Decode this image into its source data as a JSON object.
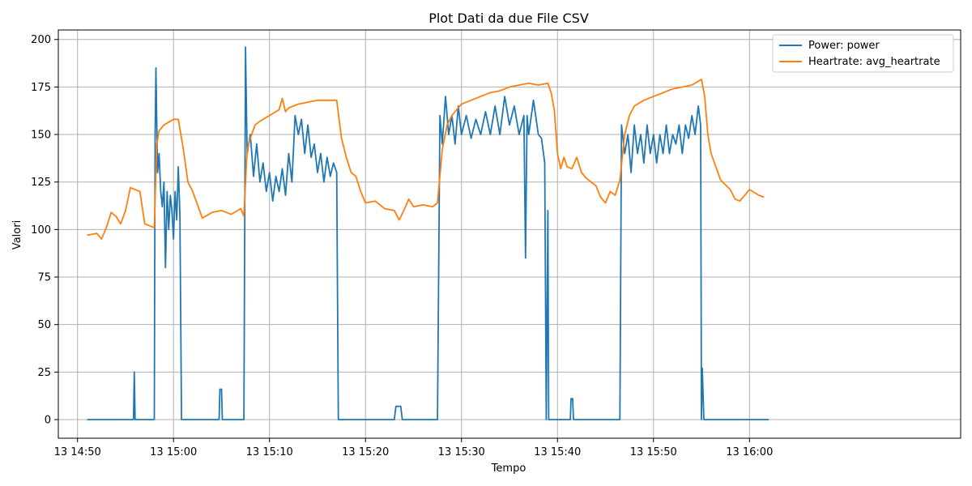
{
  "chart_data": {
    "type": "line",
    "title": "Plot Dati da due File CSV",
    "xlabel": "Tempo",
    "ylabel": "Valori",
    "xlim": [
      "13 14:48",
      "13 16:22"
    ],
    "ylim": [
      -9.8,
      205
    ],
    "x_ticks": [
      "13 14:50",
      "13 15:00",
      "13 15:10",
      "13 15:20",
      "13 15:30",
      "13 15:40",
      "13 15:50",
      "13 16:00"
    ],
    "y_ticks": [
      0,
      25,
      50,
      75,
      100,
      125,
      150,
      175,
      200
    ],
    "grid": true,
    "legend_position": "top-right",
    "series": [
      {
        "name": "Power: power",
        "color": "#1f77b4",
        "points": [
          [
            "13 14:51",
            0
          ],
          [
            "13 14:55",
            0
          ],
          [
            "13 14:55:50",
            0
          ],
          [
            "13 14:55:55",
            25
          ],
          [
            "13 14:56:00",
            0
          ],
          [
            "13 14:58",
            0
          ],
          [
            "13 14:58:05",
            150
          ],
          [
            "13 14:58:10",
            185
          ],
          [
            "13 14:58:20",
            130
          ],
          [
            "13 14:58:30",
            140
          ],
          [
            "13 14:58:40",
            120
          ],
          [
            "13 14:58:50",
            112
          ],
          [
            "13 14:59:00",
            125
          ],
          [
            "13 14:59:10",
            80
          ],
          [
            "13 14:59:20",
            120
          ],
          [
            "13 14:59:30",
            100
          ],
          [
            "13 14:59:40",
            118
          ],
          [
            "13 14:59:50",
            110
          ],
          [
            "13 15:00:00",
            95
          ],
          [
            "13 15:00:10",
            120
          ],
          [
            "13 15:00:20",
            105
          ],
          [
            "13 15:00:30",
            133
          ],
          [
            "13 15:00:40",
            108
          ],
          [
            "13 15:00:50",
            0
          ],
          [
            "13 15:04:45",
            0
          ],
          [
            "13 15:04:50",
            16
          ],
          [
            "13 15:05:00",
            16
          ],
          [
            "13 15:05:05",
            0
          ],
          [
            "13 15:07:20",
            0
          ],
          [
            "13 15:07:30",
            196
          ],
          [
            "13 15:07:40",
            140
          ],
          [
            "13 15:08:00",
            150
          ],
          [
            "13 15:08:20",
            128
          ],
          [
            "13 15:08:40",
            145
          ],
          [
            "13 15:09:00",
            125
          ],
          [
            "13 15:09:20",
            135
          ],
          [
            "13 15:09:40",
            120
          ],
          [
            "13 15:10:00",
            130
          ],
          [
            "13 15:10:20",
            115
          ],
          [
            "13 15:10:40",
            128
          ],
          [
            "13 15:11:00",
            120
          ],
          [
            "13 15:11:20",
            132
          ],
          [
            "13 15:11:40",
            118
          ],
          [
            "13 15:12:00",
            140
          ],
          [
            "13 15:12:20",
            125
          ],
          [
            "13 15:12:40",
            160
          ],
          [
            "13 15:13:00",
            150
          ],
          [
            "13 15:13:20",
            158
          ],
          [
            "13 15:13:40",
            140
          ],
          [
            "13 15:14:00",
            155
          ],
          [
            "13 15:14:20",
            138
          ],
          [
            "13 15:14:40",
            145
          ],
          [
            "13 15:15:00",
            130
          ],
          [
            "13 15:15:20",
            140
          ],
          [
            "13 15:15:40",
            125
          ],
          [
            "13 15:16:00",
            138
          ],
          [
            "13 15:16:20",
            128
          ],
          [
            "13 15:16:40",
            135
          ],
          [
            "13 15:17:00",
            130
          ],
          [
            "13 15:17:10",
            0
          ],
          [
            "13 15:23:00",
            0
          ],
          [
            "13 15:23:10",
            7
          ],
          [
            "13 15:23:40",
            7
          ],
          [
            "13 15:23:50",
            0
          ],
          [
            "13 15:27:30",
            0
          ],
          [
            "13 15:27:45",
            160
          ],
          [
            "13 15:28:00",
            145
          ],
          [
            "13 15:28:20",
            170
          ],
          [
            "13 15:28:40",
            150
          ],
          [
            "13 15:29:00",
            160
          ],
          [
            "13 15:29:20",
            145
          ],
          [
            "13 15:29:40",
            165
          ],
          [
            "13 15:30:00",
            150
          ],
          [
            "13 15:30:30",
            160
          ],
          [
            "13 15:31:00",
            148
          ],
          [
            "13 15:31:30",
            158
          ],
          [
            "13 15:32:00",
            150
          ],
          [
            "13 15:32:30",
            162
          ],
          [
            "13 15:33:00",
            150
          ],
          [
            "13 15:33:30",
            165
          ],
          [
            "13 15:34:00",
            150
          ],
          [
            "13 15:34:30",
            170
          ],
          [
            "13 15:35:00",
            155
          ],
          [
            "13 15:35:30",
            165
          ],
          [
            "13 15:36:00",
            150
          ],
          [
            "13 15:36:30",
            160
          ],
          [
            "13 15:36:40",
            85
          ],
          [
            "13 15:36:50",
            160
          ],
          [
            "13 15:37:00",
            150
          ],
          [
            "13 15:37:30",
            168
          ],
          [
            "13 15:38:00",
            150
          ],
          [
            "13 15:38:20",
            148
          ],
          [
            "13 15:38:40",
            135
          ],
          [
            "13 15:38:50",
            0
          ],
          [
            "13 15:39:00",
            110
          ],
          [
            "13 15:39:05",
            0
          ],
          [
            "13 15:41:20",
            0
          ],
          [
            "13 15:41:25",
            11
          ],
          [
            "13 15:41:35",
            11
          ],
          [
            "13 15:41:40",
            0
          ],
          [
            "13 15:46:30",
            0
          ],
          [
            "13 15:46:40",
            155
          ],
          [
            "13 15:47:00",
            140
          ],
          [
            "13 15:47:20",
            150
          ],
          [
            "13 15:47:40",
            130
          ],
          [
            "13 15:48:00",
            155
          ],
          [
            "13 15:48:20",
            140
          ],
          [
            "13 15:48:40",
            150
          ],
          [
            "13 15:49:00",
            135
          ],
          [
            "13 15:49:20",
            155
          ],
          [
            "13 15:49:40",
            140
          ],
          [
            "13 15:50:00",
            150
          ],
          [
            "13 15:50:20",
            135
          ],
          [
            "13 15:50:40",
            150
          ],
          [
            "13 15:51:00",
            140
          ],
          [
            "13 15:51:20",
            155
          ],
          [
            "13 15:51:40",
            140
          ],
          [
            "13 15:52:00",
            150
          ],
          [
            "13 15:52:20",
            145
          ],
          [
            "13 15:52:40",
            155
          ],
          [
            "13 15:53:00",
            140
          ],
          [
            "13 15:53:20",
            155
          ],
          [
            "13 15:53:40",
            148
          ],
          [
            "13 15:54:00",
            160
          ],
          [
            "13 15:54:20",
            150
          ],
          [
            "13 15:54:40",
            165
          ],
          [
            "13 15:54:55",
            155
          ],
          [
            "13 15:55:00",
            0
          ],
          [
            "13 15:55:05",
            27
          ],
          [
            "13 15:55:15",
            0
          ],
          [
            "13 16:02",
            0
          ]
        ]
      },
      {
        "name": "Heartrate: avg_heartrate",
        "color": "#ff7f0e",
        "points": [
          [
            "13 14:51",
            97
          ],
          [
            "13 14:52",
            98
          ],
          [
            "13 14:52:30",
            95
          ],
          [
            "13 14:53",
            101
          ],
          [
            "13 14:53:30",
            109
          ],
          [
            "13 14:54",
            107
          ],
          [
            "13 14:54:30",
            103
          ],
          [
            "13 14:55",
            110
          ],
          [
            "13 14:55:30",
            122
          ],
          [
            "13 14:56",
            121
          ],
          [
            "13 14:56:30",
            120
          ],
          [
            "13 14:57",
            103
          ],
          [
            "13 14:57:30",
            102
          ],
          [
            "13 14:58",
            101
          ],
          [
            "13 14:58:15",
            145
          ],
          [
            "13 14:58:30",
            152
          ],
          [
            "13 14:59",
            155
          ],
          [
            "13 15:00",
            158
          ],
          [
            "13 15:00:30",
            158
          ],
          [
            "13 15:01",
            143
          ],
          [
            "13 15:01:30",
            125
          ],
          [
            "13 15:02",
            120
          ],
          [
            "13 15:03",
            106
          ],
          [
            "13 15:04",
            109
          ],
          [
            "13 15:05",
            110
          ],
          [
            "13 15:06",
            108
          ],
          [
            "13 15:07",
            111
          ],
          [
            "13 15:07:20",
            107
          ],
          [
            "13 15:07:40",
            142
          ],
          [
            "13 15:08",
            148
          ],
          [
            "13 15:08:30",
            155
          ],
          [
            "13 15:09",
            157
          ],
          [
            "13 15:10",
            160
          ],
          [
            "13 15:11",
            163
          ],
          [
            "13 15:11:20",
            169
          ],
          [
            "13 15:11:40",
            162
          ],
          [
            "13 15:12",
            164
          ],
          [
            "13 15:13",
            166
          ],
          [
            "13 15:14",
            167
          ],
          [
            "13 15:15",
            168
          ],
          [
            "13 15:16",
            168
          ],
          [
            "13 15:17",
            168
          ],
          [
            "13 15:17:30",
            148
          ],
          [
            "13 15:18",
            138
          ],
          [
            "13 15:18:30",
            130
          ],
          [
            "13 15:19",
            128
          ],
          [
            "13 15:19:30",
            120
          ],
          [
            "13 15:20",
            114
          ],
          [
            "13 15:21",
            115
          ],
          [
            "13 15:22",
            111
          ],
          [
            "13 15:23",
            110
          ],
          [
            "13 15:23:30",
            105
          ],
          [
            "13 15:24",
            110
          ],
          [
            "13 15:24:30",
            116
          ],
          [
            "13 15:25",
            112
          ],
          [
            "13 15:26",
            113
          ],
          [
            "13 15:27",
            112
          ],
          [
            "13 15:27:30",
            114
          ],
          [
            "13 15:28",
            142
          ],
          [
            "13 15:28:30",
            155
          ],
          [
            "13 15:29",
            160
          ],
          [
            "13 15:30",
            166
          ],
          [
            "13 15:31",
            168
          ],
          [
            "13 15:32",
            170
          ],
          [
            "13 15:33",
            172
          ],
          [
            "13 15:34",
            173
          ],
          [
            "13 15:35",
            175
          ],
          [
            "13 15:36",
            176
          ],
          [
            "13 15:37",
            177
          ],
          [
            "13 15:38",
            176
          ],
          [
            "13 15:39",
            177
          ],
          [
            "13 15:39:20",
            172
          ],
          [
            "13 15:39:40",
            163
          ],
          [
            "13 15:40",
            140
          ],
          [
            "13 15:40:20",
            132
          ],
          [
            "13 15:40:40",
            138
          ],
          [
            "13 15:41",
            133
          ],
          [
            "13 15:41:30",
            132
          ],
          [
            "13 15:42",
            138
          ],
          [
            "13 15:42:30",
            130
          ],
          [
            "13 15:43",
            127
          ],
          [
            "13 15:44",
            123
          ],
          [
            "13 15:44:30",
            117
          ],
          [
            "13 15:45",
            114
          ],
          [
            "13 15:45:30",
            120
          ],
          [
            "13 15:46",
            118
          ],
          [
            "13 15:46:30",
            126
          ],
          [
            "13 15:47",
            150
          ],
          [
            "13 15:47:30",
            160
          ],
          [
            "13 15:48",
            165
          ],
          [
            "13 15:49",
            168
          ],
          [
            "13 15:50",
            170
          ],
          [
            "13 15:51",
            172
          ],
          [
            "13 15:52",
            174
          ],
          [
            "13 15:53",
            175
          ],
          [
            "13 15:54",
            176
          ],
          [
            "13 15:55",
            179
          ],
          [
            "13 15:55:20",
            170
          ],
          [
            "13 15:55:40",
            150
          ],
          [
            "13 15:56",
            140
          ],
          [
            "13 15:57",
            126
          ],
          [
            "13 15:58",
            121
          ],
          [
            "13 15:58:30",
            116
          ],
          [
            "13 15:59",
            115
          ],
          [
            "13 16:00",
            121
          ],
          [
            "13 16:01",
            118
          ],
          [
            "13 16:01:30",
            117
          ]
        ]
      }
    ]
  }
}
